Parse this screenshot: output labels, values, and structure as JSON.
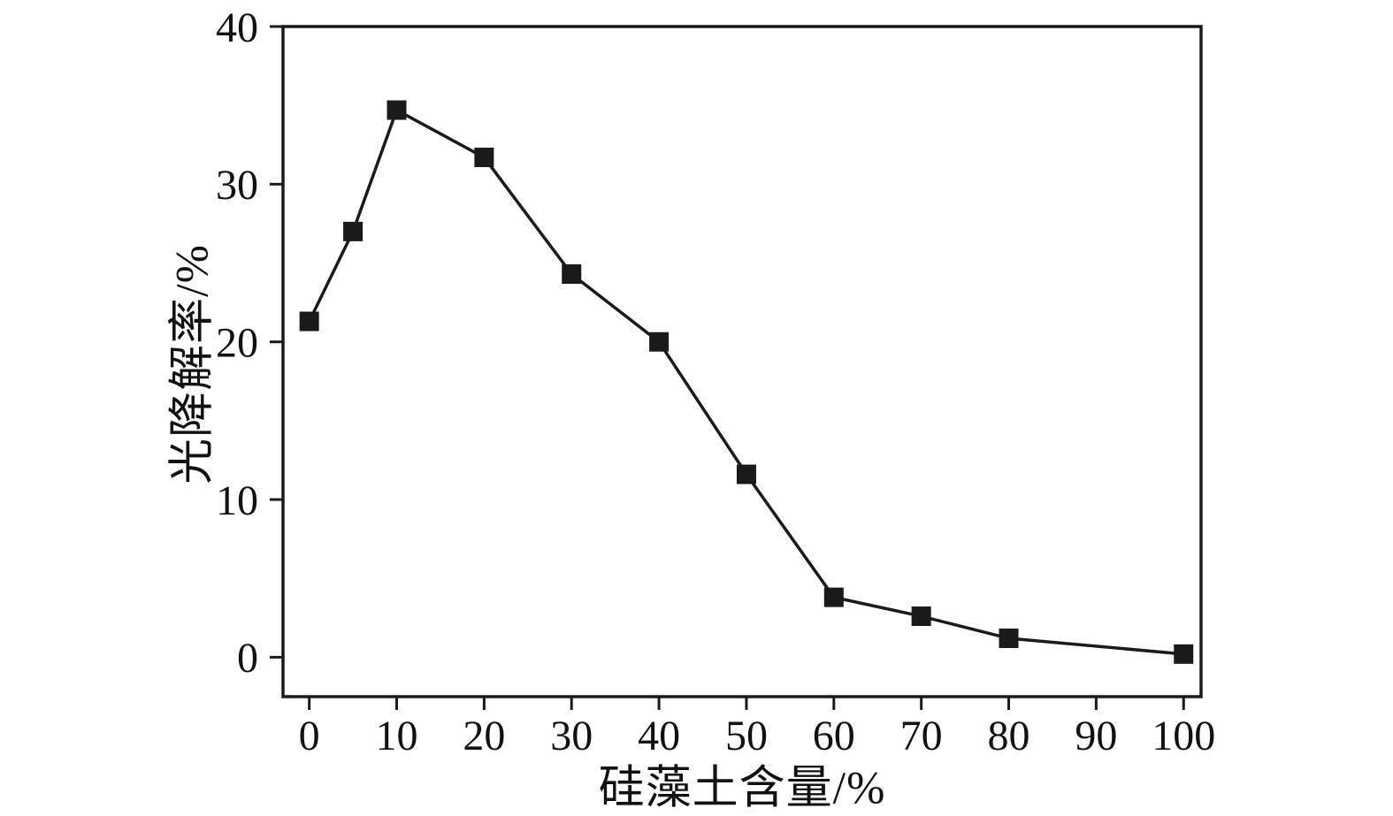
{
  "chart_data": {
    "type": "line",
    "title": "",
    "xlabel": "硅藻土含量/%",
    "ylabel": "光降解率/%",
    "x": [
      0,
      5,
      10,
      20,
      30,
      40,
      50,
      60,
      70,
      80,
      100
    ],
    "y": [
      21.3,
      27.0,
      34.7,
      31.7,
      24.3,
      20.0,
      11.6,
      3.8,
      2.6,
      1.2,
      0.2
    ],
    "xlim": [
      -3,
      102
    ],
    "ylim": [
      -2.5,
      40
    ],
    "x_ticks": [
      0,
      10,
      20,
      30,
      40,
      50,
      60,
      70,
      80,
      90,
      100
    ],
    "y_ticks": [
      0,
      10,
      20,
      30,
      40
    ],
    "marker": "square",
    "marker_color": "#1a1a1a",
    "line_color": "#1a1a1a",
    "grid": false,
    "legend_position": "none"
  }
}
